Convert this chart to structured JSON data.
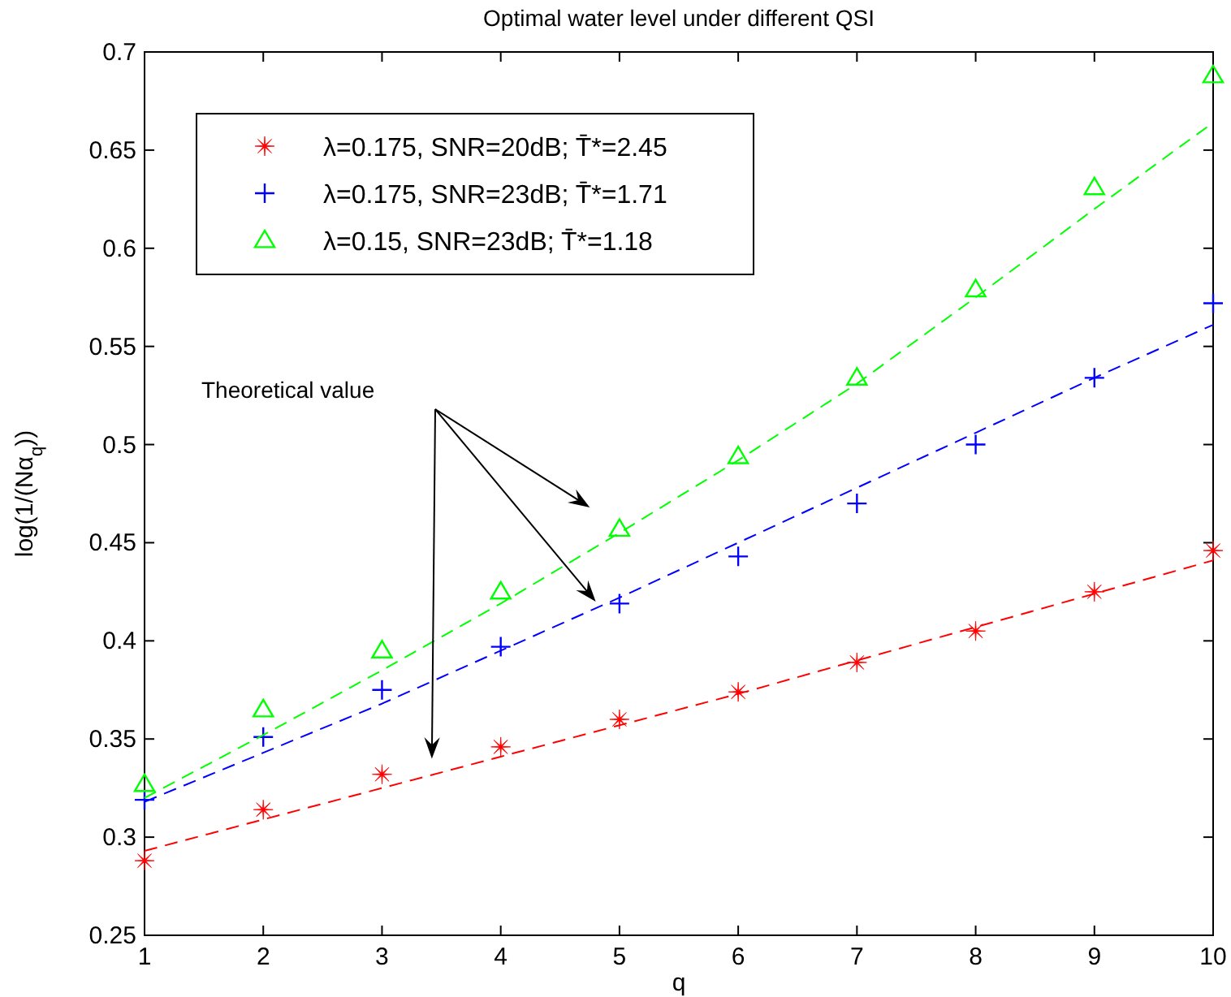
{
  "chart_data": {
    "type": "scatter",
    "title": "Optimal water level under different QSI",
    "xlabel": "q",
    "ylabel": "log(1/(Nα$_{q}$))",
    "x": [
      1,
      2,
      3,
      4,
      5,
      6,
      7,
      8,
      9,
      10
    ],
    "xlim": [
      1,
      10
    ],
    "xticks": [
      1,
      2,
      3,
      4,
      5,
      6,
      7,
      8,
      9,
      10
    ],
    "ylim": [
      0.25,
      0.7
    ],
    "yticks": [
      0.25,
      0.3,
      0.35,
      0.4,
      0.45,
      0.5,
      0.55,
      0.6,
      0.65,
      0.7
    ],
    "grid": false,
    "legend": "top left",
    "annotations": [
      "Theoretical value"
    ],
    "series": [
      {
        "name": "λ=0.175, SNR=20dB; T̄*=2.45",
        "type": "scatter",
        "marker": "star",
        "color": "#ff0000",
        "values": [
          0.288,
          0.314,
          0.332,
          0.346,
          0.36,
          0.374,
          0.389,
          0.405,
          0.425,
          0.446
        ]
      },
      {
        "name": "λ=0.175, SNR=23dB; T̄*=1.71",
        "type": "scatter",
        "marker": "cross",
        "color": "#0000ff",
        "values": [
          0.319,
          0.351,
          0.375,
          0.397,
          0.419,
          0.443,
          0.47,
          0.5,
          0.534,
          0.572
        ]
      },
      {
        "name": "λ=0.15, SNR=23dB; T̄*=1.18",
        "type": "scatter",
        "marker": "triangle",
        "color": "#00ff00",
        "values": [
          0.327,
          0.365,
          0.395,
          0.425,
          0.457,
          0.494,
          0.534,
          0.579,
          0.631,
          0.688
        ]
      },
      {
        "type": "line",
        "marker": "none",
        "line_style": "dashed",
        "color": "#ff0000",
        "values": [
          0.293,
          0.309,
          0.325,
          0.341,
          0.357,
          0.373,
          0.39,
          0.407,
          0.424,
          0.441
        ]
      },
      {
        "type": "line",
        "marker": "none",
        "line_style": "dashed",
        "color": "#0000ff",
        "values": [
          0.318,
          0.343,
          0.368,
          0.395,
          0.422,
          0.45,
          0.478,
          0.506,
          0.534,
          0.561
        ]
      },
      {
        "type": "line",
        "marker": "none",
        "line_style": "dashed",
        "color": "#00ff00",
        "values": [
          0.32,
          0.352,
          0.385,
          0.419,
          0.455,
          0.492,
          0.531,
          0.575,
          0.62,
          0.664
        ]
      }
    ]
  }
}
